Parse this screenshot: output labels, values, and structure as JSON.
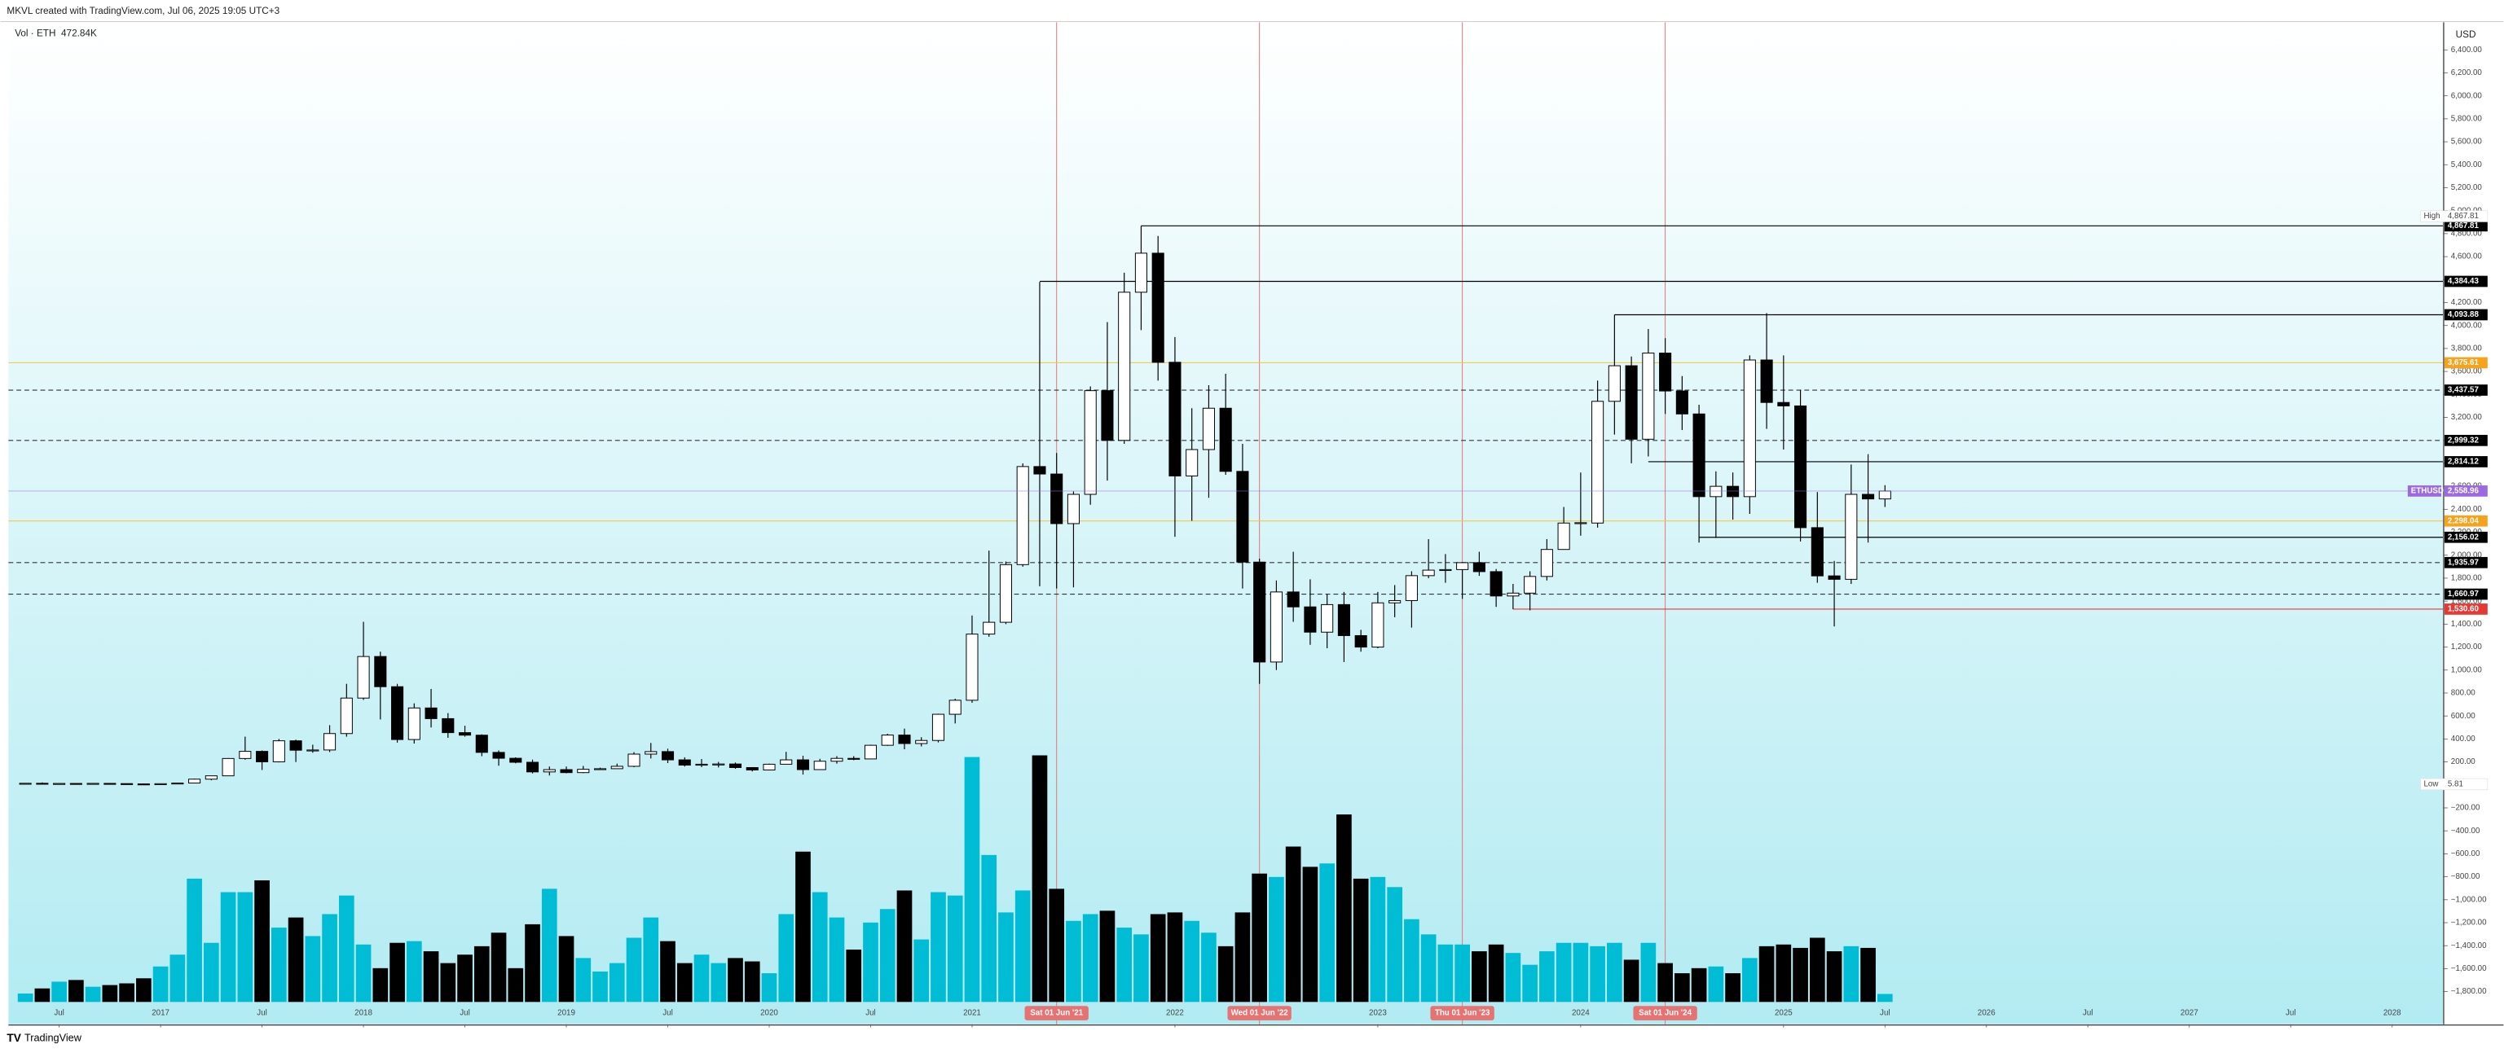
{
  "header": {
    "credit": "MKVL created with TradingView.com, Jul 06, 2025 19:05 UTC+3",
    "footer": "TradingView"
  },
  "chart_data": {
    "type": "candlestick",
    "currency": "USD",
    "xlim": [
      "2016-04",
      "2028-04"
    ],
    "ylim": [
      -1890,
      6640
    ],
    "x": [
      "2016-05",
      "2016-06",
      "2016-07",
      "2016-08",
      "2016-09",
      "2016-10",
      "2016-11",
      "2016-12",
      "2017-01",
      "2017-02",
      "2017-03",
      "2017-04",
      "2017-05",
      "2017-06",
      "2017-07",
      "2017-08",
      "2017-09",
      "2017-10",
      "2017-11",
      "2017-12",
      "2018-01",
      "2018-02",
      "2018-03",
      "2018-04",
      "2018-05",
      "2018-06",
      "2018-07",
      "2018-08",
      "2018-09",
      "2018-10",
      "2018-11",
      "2018-12",
      "2019-01",
      "2019-02",
      "2019-03",
      "2019-04",
      "2019-05",
      "2019-06",
      "2019-07",
      "2019-08",
      "2019-09",
      "2019-10",
      "2019-11",
      "2019-12",
      "2020-01",
      "2020-02",
      "2020-03",
      "2020-04",
      "2020-05",
      "2020-06",
      "2020-07",
      "2020-08",
      "2020-09",
      "2020-10",
      "2020-11",
      "2020-12",
      "2021-01",
      "2021-02",
      "2021-03",
      "2021-04",
      "2021-05",
      "2021-06",
      "2021-07",
      "2021-08",
      "2021-09",
      "2021-10",
      "2021-11",
      "2021-12",
      "2022-01",
      "2022-02",
      "2022-03",
      "2022-04",
      "2022-05",
      "2022-06",
      "2022-07",
      "2022-08",
      "2022-09",
      "2022-10",
      "2022-11",
      "2022-12",
      "2023-01",
      "2023-02",
      "2023-03",
      "2023-04",
      "2023-05",
      "2023-06",
      "2023-07",
      "2023-08",
      "2023-09",
      "2023-10",
      "2023-11",
      "2023-12",
      "2024-01",
      "2024-02",
      "2024-03",
      "2024-04",
      "2024-05",
      "2024-06",
      "2024-07",
      "2024-08",
      "2024-09",
      "2024-10",
      "2024-11",
      "2024-12",
      "2025-01",
      "2025-02",
      "2025-03",
      "2025-04",
      "2025-05",
      "2025-06",
      "2025-07"
    ],
    "series": {
      "name": "ETHUSD",
      "up_color": "#ffffff",
      "down_color": "#000000",
      "open": [
        9.3,
        14.0,
        12.4,
        12.6,
        11.8,
        13.2,
        11.3,
        8.6,
        7.9,
        10.6,
        16.1,
        50,
        79,
        230,
        292,
        201,
        384,
        302,
        304,
        447,
        756,
        1118,
        855,
        395,
        670,
        577,
        455,
        433,
        283,
        232,
        197,
        113,
        133,
        107,
        136,
        141,
        162,
        268,
        290,
        218,
        172,
        180,
        182,
        151,
        130,
        180,
        218,
        133,
        206,
        231,
        226,
        345,
        434,
        360,
        387,
        615,
        737,
        1313,
        1416,
        1918,
        2772,
        2707,
        2275,
        2530,
        3433,
        3000,
        4290,
        4630,
        3680,
        2690,
        2920,
        3280,
        2730,
        1940,
        1070,
        1680,
        1550,
        1330,
        1570,
        1300,
        1200,
        1585,
        1605,
        1822,
        1870,
        1875,
        1935,
        1857,
        1645,
        1670,
        1815,
        2050,
        2280,
        2280,
        3340,
        3650,
        3010,
        3760,
        3430,
        3230,
        2510,
        2600,
        2510,
        3700,
        3330,
        3300,
        2240,
        1820,
        1790,
        2530,
        2490
      ],
      "high": [
        14.8,
        21.5,
        14.8,
        12.9,
        14.0,
        13.2,
        11.5,
        8.9,
        11.4,
        17.2,
        55,
        80,
        234,
        420,
        300,
        400,
        394,
        350,
        520,
        880,
        1420,
        1160,
        880,
        710,
        835,
        625,
        515,
        440,
        300,
        240,
        220,
        160,
        160,
        165,
        150,
        185,
        285,
        365,
        315,
        240,
        225,
        200,
        195,
        155,
        185,
        288,
        254,
        227,
        250,
        250,
        350,
        445,
        490,
        415,
        620,
        750,
        1475,
        2040,
        1945,
        2800,
        4380,
        2890,
        2555,
        3470,
        4030,
        4460,
        4867.81,
        4780,
        3900,
        3280,
        3480,
        3580,
        2970,
        1970,
        1780,
        2030,
        1790,
        1660,
        1680,
        1350,
        1680,
        1740,
        1860,
        2140,
        2010,
        1940,
        2030,
        1880,
        1750,
        1860,
        2140,
        2420,
        2720,
        3520,
        4093.88,
        3730,
        3970,
        3890,
        3560,
        3310,
        2730,
        2720,
        3740,
        4108,
        3740,
        3440,
        2550,
        1950,
        2790,
        2880,
        2610
      ],
      "low": [
        7.0,
        10.5,
        10.0,
        10.2,
        11.5,
        10.3,
        7.9,
        6.0,
        7.9,
        10.2,
        15.5,
        40,
        78,
        219,
        130,
        196,
        199,
        280,
        286,
        420,
        740,
        570,
        368,
        360,
        500,
        410,
        420,
        250,
        167,
        188,
        100,
        82,
        101,
        102,
        130,
        140,
        154,
        230,
        190,
        160,
        155,
        152,
        140,
        117,
        127,
        180,
        90,
        130,
        185,
        215,
        225,
        340,
        310,
        335,
        370,
        535,
        715,
        1290,
        1400,
        1900,
        1730,
        1710,
        1720,
        2440,
        2650,
        2970,
        3960,
        3520,
        2160,
        2300,
        2500,
        2700,
        1710,
        880,
        1000,
        1420,
        1220,
        1190,
        1070,
        1160,
        1190,
        1460,
        1370,
        1800,
        1760,
        1620,
        1820,
        1550,
        1530,
        1520,
        1780,
        2050,
        2170,
        2240,
        3050,
        2800,
        2860,
        3230,
        3090,
        2110,
        2150,
        2310,
        2360,
        3100,
        2920,
        2120,
        1760,
        1380,
        1750,
        2110,
        2420
      ],
      "close": [
        14.0,
        12.4,
        12.6,
        11.8,
        13.2,
        11.3,
        8.6,
        7.9,
        10.6,
        16.1,
        50,
        79,
        230,
        292,
        201,
        384,
        302,
        304,
        447,
        756,
        1118,
        855,
        395,
        670,
        577,
        455,
        433,
        283,
        232,
        197,
        113,
        133,
        107,
        136,
        141,
        162,
        268,
        290,
        218,
        172,
        180,
        182,
        151,
        130,
        180,
        218,
        133,
        206,
        231,
        226,
        345,
        434,
        360,
        387,
        615,
        737,
        1313,
        1416,
        1918,
        2772,
        2707,
        2275,
        2530,
        3433,
        3000,
        4290,
        4630,
        3680,
        2690,
        2920,
        3280,
        2730,
        1940,
        1070,
        1680,
        1550,
        1330,
        1570,
        1300,
        1200,
        1585,
        1605,
        1822,
        1870,
        1875,
        1935,
        1857,
        1645,
        1670,
        1815,
        2050,
        2280,
        2283,
        3340,
        3650,
        3010,
        3760,
        3430,
        3230,
        2510,
        2600,
        2510,
        3700,
        3330,
        3300,
        2240,
        1820,
        1790,
        2530,
        2490,
        2558.96
      ]
    },
    "volume": {
      "name": "Vol · ETH",
      "ylim": [
        0,
        58
      ],
      "up_color": "#00bcd4",
      "down_color": "#000000",
      "last_label": "472.84K",
      "values": [
        0.5,
        0.8,
        1.2,
        1.3,
        0.9,
        1.0,
        1.1,
        1.4,
        2.1,
        2.8,
        7.3,
        3.5,
        6.5,
        6.5,
        7.2,
        4.4,
        5.0,
        3.9,
        5.2,
        6.3,
        3.4,
        2.0,
        3.5,
        3.6,
        3.0,
        2.3,
        2.8,
        3.3,
        4.1,
        2.0,
        4.6,
        6.7,
        3.9,
        2.6,
        1.8,
        2.3,
        3.8,
        5.0,
        3.6,
        2.3,
        2.8,
        2.3,
        2.6,
        2.4,
        1.7,
        5.2,
        8.9,
        6.5,
        5.0,
        3.1,
        4.7,
        5.5,
        6.6,
        3.7,
        6.5,
        6.3,
        14.5,
        8.7,
        5.3,
        6.6,
        14.6,
        6.7,
        4.8,
        5.2,
        5.4,
        4.4,
        4.0,
        5.2,
        5.3,
        4.8,
        4.1,
        3.3,
        5.3,
        7.6,
        7.4,
        9.2,
        8.0,
        8.2,
        11.1,
        7.3,
        7.4,
        6.8,
        4.9,
        4.0,
        3.4,
        3.4,
        3.0,
        3.4,
        2.9,
        2.2,
        3.0,
        3.5,
        3.5,
        3.3,
        3.5,
        2.5,
        3.5,
        2.3,
        1.7,
        2.0,
        2.1,
        1.7,
        2.6,
        3.3,
        3.4,
        3.2,
        3.8,
        3.0,
        3.3,
        3.2,
        0.47284
      ]
    },
    "yticks": [
      {
        "value": 6400,
        "label": "6,400.00"
      },
      {
        "value": 6200,
        "label": "6,200.00"
      },
      {
        "value": 6000,
        "label": "6,000.00"
      },
      {
        "value": 5800,
        "label": "5,800.00"
      },
      {
        "value": 5600,
        "label": "5,600.00"
      },
      {
        "value": 5400,
        "label": "5,400.00"
      },
      {
        "value": 5200,
        "label": "5,200.00"
      },
      {
        "value": 5000,
        "label": "5,000.00"
      },
      {
        "value": 4800,
        "label": "4,800.00"
      },
      {
        "value": 4600,
        "label": "4,600.00"
      },
      {
        "value": 4400,
        "label": "4,400.00"
      },
      {
        "value": 4200,
        "label": "4,200.00"
      },
      {
        "value": 4000,
        "label": "4,000.00"
      },
      {
        "value": 3800,
        "label": "3,800.00"
      },
      {
        "value": 3600,
        "label": "3,600.00"
      },
      {
        "value": 3400,
        "label": "3,400.00"
      },
      {
        "value": 3200,
        "label": "3,200.00"
      },
      {
        "value": 3000,
        "label": "3,000.00"
      },
      {
        "value": 2800,
        "label": "2,800.00"
      },
      {
        "value": 2600,
        "label": "2,600.00"
      },
      {
        "value": 2400,
        "label": "2,400.00"
      },
      {
        "value": 2200,
        "label": "2,200.00"
      },
      {
        "value": 2000,
        "label": "2,000.00"
      },
      {
        "value": 1800,
        "label": "1,800.00"
      },
      {
        "value": 1600,
        "label": "1,600.00"
      },
      {
        "value": 1400,
        "label": "1,400.00"
      },
      {
        "value": 1200,
        "label": "1,200.00"
      },
      {
        "value": 1000,
        "label": "1,000.00"
      },
      {
        "value": 800,
        "label": "800.00"
      },
      {
        "value": 600,
        "label": "600.00"
      },
      {
        "value": 400,
        "label": "400.00"
      },
      {
        "value": 200,
        "label": "200.00"
      },
      {
        "value": -200,
        "label": "−200.00"
      },
      {
        "value": -400,
        "label": "−400.00"
      },
      {
        "value": -600,
        "label": "−600.00"
      },
      {
        "value": -800,
        "label": "−800.00"
      },
      {
        "value": -1000,
        "label": "−1,000.00"
      },
      {
        "value": -1200,
        "label": "−1,200.00"
      },
      {
        "value": -1400,
        "label": "−1,400.00"
      },
      {
        "value": -1600,
        "label": "−1,600.00"
      },
      {
        "value": -1800,
        "label": "−1,800.00"
      }
    ],
    "xticks": [
      {
        "value": "2016-07",
        "label": "Jul"
      },
      {
        "value": "2017-01",
        "label": "2017"
      },
      {
        "value": "2017-07",
        "label": "Jul"
      },
      {
        "value": "2018-01",
        "label": "2018"
      },
      {
        "value": "2018-07",
        "label": "Jul"
      },
      {
        "value": "2019-01",
        "label": "2019"
      },
      {
        "value": "2019-07",
        "label": "Jul"
      },
      {
        "value": "2020-01",
        "label": "2020"
      },
      {
        "value": "2020-07",
        "label": "Jul"
      },
      {
        "value": "2021-01",
        "label": "2021"
      },
      {
        "value": "2022-01",
        "label": "2022"
      },
      {
        "value": "2023-01",
        "label": "2023"
      },
      {
        "value": "2024-01",
        "label": "2024"
      },
      {
        "value": "2025-01",
        "label": "2025"
      },
      {
        "value": "2025-07",
        "label": "Jul"
      },
      {
        "value": "2026-01",
        "label": "2026"
      },
      {
        "value": "2026-07",
        "label": "Jul"
      },
      {
        "value": "2027-01",
        "label": "2027"
      },
      {
        "value": "2027-07",
        "label": "Jul"
      },
      {
        "value": "2028-01",
        "label": "2028"
      }
    ],
    "events": [
      {
        "x": "2021-06",
        "label": "Sat 01 Jun '21"
      },
      {
        "x": "2022-06",
        "label": "Wed 01 Jun '22"
      },
      {
        "x": "2023-06",
        "label": "Thu 01 Jun '23"
      },
      {
        "x": "2024-06",
        "label": "Sat 01 Jun '24"
      }
    ],
    "event_color": "#e57373",
    "levels": [
      {
        "value": 4867.81,
        "label": "4,867.81",
        "color": "#000000",
        "label_bg": "#000000",
        "style": "solid",
        "from": "2021-11"
      },
      {
        "value": 4384.43,
        "label": "4,384.43",
        "color": "#000000",
        "label_bg": "#000000",
        "style": "solid",
        "from": "2021-05"
      },
      {
        "value": 4093.88,
        "label": "4,093.88",
        "color": "#000000",
        "label_bg": "#000000",
        "style": "solid",
        "from": "2024-03"
      },
      {
        "value": 3675.61,
        "label": "3,675.61",
        "color": "#f2c94c",
        "label_bg": "#f7a21b",
        "style": "solid"
      },
      {
        "value": 3437.57,
        "label": "3,437.57",
        "color": "#333333",
        "label_bg": "#000000",
        "style": "dashed"
      },
      {
        "value": 2999.32,
        "label": "2,999.32",
        "color": "#333333",
        "label_bg": "#000000",
        "style": "dashed"
      },
      {
        "value": 2814.12,
        "label": "2,814.12",
        "color": "#000000",
        "label_bg": "#000000",
        "style": "solid",
        "from": "2024-05"
      },
      {
        "value": 2298.04,
        "label": "2,298.04",
        "color": "#f2c94c",
        "label_bg": "#f7a21b",
        "style": "solid"
      },
      {
        "value": 2156.02,
        "label": "2,156.02",
        "color": "#000000",
        "label_bg": "#000000",
        "style": "solid",
        "from": "2024-08"
      },
      {
        "value": 1935.97,
        "label": "1,935.97",
        "color": "#333333",
        "label_bg": "#000000",
        "style": "dashed"
      },
      {
        "value": 1660.97,
        "label": "1,660.97",
        "color": "#333333",
        "label_bg": "#000000",
        "style": "dashed"
      },
      {
        "value": 1530.6,
        "label": "1,530.60",
        "color": "#e53935",
        "label_bg": "#e53935",
        "style": "solid",
        "from": "2023-09"
      }
    ],
    "last_price": {
      "symbol": "ETHUSD",
      "value": 2558.96,
      "label": "2,558.96",
      "color": "#9c6ade"
    },
    "high_mark": {
      "tag": "High",
      "value": 4867.81,
      "label": "4,867.81"
    },
    "low_mark": {
      "tag": "Low",
      "value": 5.81,
      "label": "5.81"
    }
  }
}
